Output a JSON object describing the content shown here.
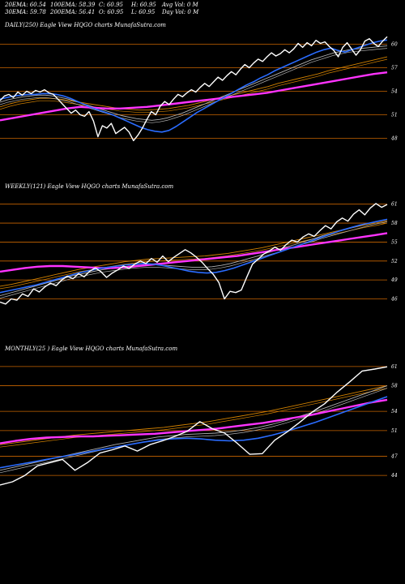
{
  "header": {
    "row1": [
      "20EMA: 60.54",
      "100EMA: 58.39",
      "C: 60.95",
      "H: 60.95",
      "Avg Vol: 0  M"
    ],
    "row2": [
      "30EMA: 59.78",
      "200EMA: 56.41",
      "O: 60.95",
      "L: 60.95",
      "Day Vol: 0  M"
    ]
  },
  "colors": {
    "background": "#000000",
    "price": "#ffffff",
    "ema_short": "#2a6cff",
    "ema_200": "#ff33ff",
    "ema_mid": "#b0b0b0",
    "ema_long": "#d08000",
    "gridline": "#c86400"
  },
  "panels": [
    {
      "title": "DAILY(250) Eagle  View  HQGO charts MunafaSutra.com",
      "yticks": [
        60,
        57,
        54,
        51,
        48
      ]
    },
    {
      "title": "WEEKLY(121) Eagle  View  HQGO charts MunafaSutra.com",
      "yticks": [
        61,
        58,
        55,
        52,
        49,
        46
      ]
    },
    {
      "title": "MONTHLY(25                              ) Eagle  View  HQGO charts MunafaSutra.com",
      "yticks": [
        61,
        58,
        54,
        51,
        47,
        44
      ]
    }
  ],
  "chart_data": [
    {
      "type": "line",
      "title": "DAILY(250) Eagle  View  HQGO charts MunafaSutra.com",
      "ylim": [
        46.5,
        61.5
      ],
      "grid": true,
      "series": [
        {
          "role": "price",
          "values": [
            52.8,
            53.4,
            53.6,
            53.2,
            53.9,
            53.5,
            54.0,
            53.7,
            54.1,
            53.9,
            54.2,
            53.8,
            53.6,
            53.0,
            52.4,
            51.8,
            51.2,
            51.6,
            51.0,
            50.8,
            51.4,
            50.2,
            48.2,
            49.6,
            49.3,
            49.9,
            48.6,
            49.0,
            49.4,
            48.8,
            47.7,
            48.4,
            49.3,
            50.4,
            51.4,
            51.0,
            52.1,
            52.7,
            52.3,
            53.0,
            53.6,
            53.3,
            53.8,
            54.2,
            53.9,
            54.5,
            55.0,
            54.6,
            55.2,
            55.8,
            55.4,
            56.0,
            56.5,
            56.1,
            56.8,
            57.4,
            57.0,
            57.6,
            58.1,
            57.8,
            58.4,
            58.9,
            58.5,
            58.8,
            59.3,
            58.9,
            59.4,
            60.1,
            59.6,
            60.2,
            59.8,
            60.5,
            60.1,
            60.3,
            59.7,
            59.2,
            58.4,
            59.6,
            60.2,
            59.4,
            58.6,
            59.3,
            60.4,
            60.7,
            60.1,
            59.7,
            60.4,
            60.95
          ]
        },
        {
          "role": "ema_short",
          "values": [
            53.0,
            53.2,
            53.4,
            53.5,
            53.6,
            53.6,
            53.7,
            53.7,
            53.6,
            53.4,
            53.1,
            52.7,
            52.3,
            51.9,
            51.6,
            51.3,
            51.0,
            50.6,
            50.2,
            49.8,
            49.4,
            49.1,
            48.9,
            48.8,
            49.0,
            49.5,
            50.1,
            50.7,
            51.3,
            51.8,
            52.3,
            52.8,
            53.3,
            53.8,
            54.3,
            54.8,
            55.2,
            55.7,
            56.1,
            56.6,
            57.0,
            57.4,
            57.8,
            58.2,
            58.6,
            59.0,
            59.3,
            59.5,
            59.2,
            59.0,
            59.3,
            59.6,
            59.9,
            60.2,
            60.4,
            60.54
          ]
        },
        {
          "role": "ema_mid",
          "values": [
            52.6,
            52.9,
            53.1,
            53.3,
            53.4,
            53.5,
            53.5,
            53.4,
            53.2,
            53.0,
            52.7,
            52.4,
            52.1,
            51.8,
            51.5,
            51.2,
            50.9,
            50.7,
            50.5,
            50.4,
            50.3,
            50.4,
            50.6,
            50.9,
            51.2,
            51.6,
            52.0,
            52.4,
            52.8,
            53.2,
            53.6,
            54.0,
            54.4,
            54.8,
            55.2,
            55.6,
            56.0,
            56.4,
            56.8,
            57.2,
            57.6,
            58.0,
            58.3,
            58.6,
            58.9,
            59.1,
            59.3,
            59.4,
            59.5,
            59.6,
            59.7,
            59.78
          ]
        },
        {
          "role": "ema_long",
          "values": [
            52.0,
            52.4,
            52.7,
            52.9,
            53.1,
            53.1,
            53.0,
            52.8,
            52.6,
            52.4,
            52.2,
            52.0,
            51.8,
            51.7,
            51.6,
            51.6,
            51.7,
            51.8,
            52.0,
            52.2,
            52.5,
            52.8,
            53.1,
            53.4,
            53.7,
            54.0,
            54.3,
            54.6,
            55.0,
            55.3,
            55.6,
            55.9,
            56.2,
            56.6,
            56.9,
            57.2,
            57.5,
            57.8,
            58.1,
            58.39
          ]
        },
        {
          "role": "ema_200",
          "values": [
            50.3,
            50.6,
            50.9,
            51.2,
            51.5,
            51.8,
            52.0,
            51.9,
            51.8,
            51.8,
            51.9,
            52.0,
            52.2,
            52.4,
            52.6,
            52.8,
            53.0,
            53.2,
            53.4,
            53.6,
            53.8,
            54.1,
            54.4,
            54.7,
            55.0,
            55.3,
            55.6,
            55.9,
            56.2,
            56.41
          ]
        }
      ]
    },
    {
      "type": "line",
      "title": "WEEKLY(121) Eagle  View  HQGO charts MunafaSutra.com",
      "ylim": [
        43.5,
        62.5
      ],
      "grid": true,
      "series": [
        {
          "role": "price",
          "values": [
            45.5,
            45.2,
            46.0,
            45.8,
            46.8,
            46.4,
            47.6,
            47.1,
            47.9,
            48.5,
            48.1,
            49.0,
            49.6,
            49.2,
            50.0,
            49.5,
            50.4,
            50.9,
            50.3,
            49.4,
            50.1,
            50.6,
            51.2,
            50.8,
            51.5,
            52.0,
            51.6,
            52.4,
            51.8,
            52.8,
            51.9,
            52.6,
            53.2,
            53.8,
            53.3,
            52.6,
            51.8,
            50.8,
            49.9,
            48.6,
            46.0,
            47.2,
            47.0,
            47.4,
            49.5,
            51.5,
            52.3,
            53.1,
            53.6,
            54.2,
            53.7,
            54.6,
            55.3,
            55.0,
            55.8,
            56.3,
            55.9,
            56.8,
            57.6,
            57.1,
            58.2,
            58.8,
            58.3,
            59.4,
            60.1,
            59.3,
            60.4,
            61.1,
            60.5,
            60.95
          ]
        },
        {
          "role": "ema_short",
          "values": [
            47.0,
            47.3,
            47.6,
            47.9,
            48.2,
            48.6,
            49.0,
            49.4,
            49.8,
            50.2,
            50.5,
            50.8,
            51.0,
            51.2,
            51.4,
            51.5,
            51.6,
            51.5,
            51.3,
            51.0,
            50.7,
            50.4,
            50.2,
            50.1,
            50.2,
            50.5,
            50.9,
            51.4,
            51.9,
            52.4,
            52.9,
            53.4,
            53.9,
            54.4,
            54.9,
            55.4,
            55.9,
            56.4,
            56.9,
            57.3,
            57.7,
            58.0,
            58.3,
            58.6
          ]
        },
        {
          "role": "ema_mid",
          "values": [
            46.5,
            46.9,
            47.3,
            47.7,
            48.1,
            48.5,
            48.9,
            49.3,
            49.7,
            50.0,
            50.3,
            50.6,
            50.8,
            51.0,
            51.2,
            51.3,
            51.4,
            51.4,
            51.3,
            51.2,
            51.1,
            51.0,
            51.0,
            51.1,
            51.3,
            51.6,
            52.0,
            52.4,
            52.8,
            53.3,
            53.7,
            54.2,
            54.6,
            55.1,
            55.5,
            56.0,
            56.4,
            56.8,
            57.2,
            57.6,
            58.0,
            58.3,
            58.6
          ]
        },
        {
          "role": "ema_long",
          "values": [
            48.0,
            48.3,
            48.7,
            49.1,
            49.5,
            49.9,
            50.3,
            50.7,
            51.0,
            51.3,
            51.6,
            51.9,
            52.1,
            52.3,
            52.4,
            52.5,
            52.6,
            52.7,
            52.8,
            53.0,
            53.2,
            53.5,
            53.8,
            54.1,
            54.5,
            54.9,
            55.3,
            55.7,
            56.1,
            56.5,
            56.9,
            57.3,
            57.7,
            58.0,
            58.39
          ]
        },
        {
          "role": "ema_200",
          "values": [
            50.3,
            50.6,
            50.9,
            51.1,
            51.2,
            51.2,
            51.1,
            51.0,
            50.9,
            50.9,
            51.0,
            51.2,
            51.4,
            51.6,
            51.8,
            52.0,
            52.2,
            52.4,
            52.6,
            52.8,
            53.1,
            53.4,
            53.7,
            54.0,
            54.3,
            54.6,
            54.9,
            55.2,
            55.5,
            55.8,
            56.1,
            56.41
          ]
        }
      ]
    },
    {
      "type": "line",
      "title": "MONTHLY(25                              ) Eagle  View  HQGO charts MunafaSutra.com",
      "ylim": [
        42.5,
        62.5
      ],
      "grid": true,
      "series": [
        {
          "role": "price",
          "values": [
            42.5,
            43.0,
            44.0,
            45.5,
            46.0,
            46.5,
            44.8,
            46.0,
            47.5,
            48.0,
            48.6,
            47.8,
            48.8,
            49.4,
            50.1,
            50.9,
            52.4,
            51.3,
            50.6,
            49.0,
            47.3,
            47.4,
            49.5,
            50.8,
            52.3,
            53.9,
            55.2,
            57.0,
            58.6,
            60.3,
            60.6,
            60.95
          ]
        },
        {
          "role": "ema_short",
          "values": [
            45.2,
            45.6,
            46.0,
            46.4,
            46.8,
            47.2,
            47.6,
            48.0,
            48.4,
            48.8,
            49.2,
            49.5,
            49.7,
            49.8,
            49.7,
            49.5,
            49.4,
            49.5,
            49.8,
            50.3,
            50.9,
            51.6,
            52.3,
            53.1,
            53.9,
            54.7,
            55.5,
            56.3
          ]
        },
        {
          "role": "ema_mid",
          "values": [
            44.8,
            45.3,
            45.8,
            46.3,
            46.8,
            47.3,
            47.8,
            48.3,
            48.8,
            49.2,
            49.6,
            50.0,
            50.2,
            50.4,
            50.5,
            50.6,
            50.8,
            51.1,
            51.5,
            52.0,
            52.6,
            53.3,
            54.0,
            54.8,
            55.6,
            56.4,
            57.2,
            58.0
          ]
        },
        {
          "role": "ema_long",
          "values": [
            48.8,
            49.1,
            49.4,
            49.7,
            50.0,
            50.3,
            50.5,
            50.7,
            50.9,
            51.1,
            51.3,
            51.5,
            51.8,
            52.1,
            52.4,
            52.8,
            53.2,
            53.6,
            54.0,
            54.5,
            55.0,
            55.5,
            56.0,
            56.5,
            57.0,
            57.5,
            58.0
          ]
        },
        {
          "role": "ema_200",
          "values": [
            49.0,
            49.4,
            49.7,
            49.9,
            50.0,
            50.1,
            50.1,
            50.2,
            50.3,
            50.4,
            50.5,
            50.7,
            50.9,
            51.1,
            51.3,
            51.6,
            51.9,
            52.2,
            52.6,
            53.0,
            53.4,
            53.9,
            54.4,
            54.9,
            55.4,
            55.8
          ]
        }
      ]
    }
  ]
}
